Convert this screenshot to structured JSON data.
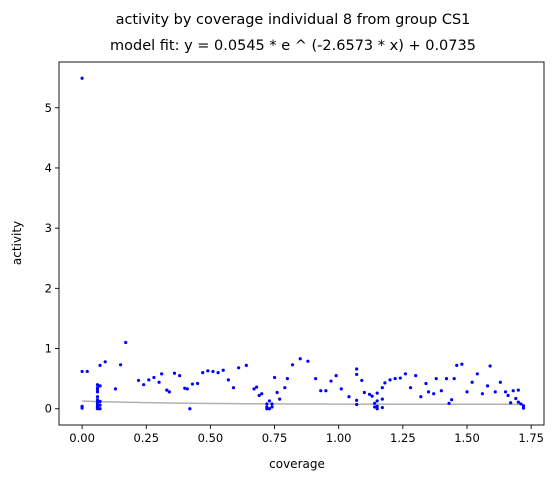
{
  "chart_data": {
    "type": "scatter",
    "title": "activity by coverage individual 8 from group CS1",
    "subtitle": "model fit: y = 0.0545 * e ^ (-2.6573 * x) + 0.0735",
    "xlabel": "coverage",
    "ylabel": "activity",
    "xlim": [
      -0.09,
      1.8
    ],
    "ylim": [
      -0.27,
      5.76
    ],
    "xticks": [
      0.0,
      0.25,
      0.5,
      0.75,
      1.0,
      1.25,
      1.5,
      1.75
    ],
    "xtick_labels": [
      "0.00",
      "0.25",
      "0.50",
      "0.75",
      "1.00",
      "1.25",
      "1.50",
      "1.75"
    ],
    "yticks": [
      0,
      1,
      2,
      3,
      4,
      5
    ],
    "ytick_labels": [
      "0",
      "1",
      "2",
      "3",
      "4",
      "5"
    ],
    "grid": false,
    "point_color": "#0000ff",
    "fit_color": "#b0b0b0",
    "fit": {
      "a": 0.0545,
      "b": -2.6573,
      "c": 0.0735
    },
    "points": [
      [
        0.0,
        5.49
      ],
      [
        0.0,
        0.62
      ],
      [
        0.0,
        0.04
      ],
      [
        0.0,
        0.01
      ],
      [
        0.02,
        0.62
      ],
      [
        0.06,
        0.0
      ],
      [
        0.06,
        0.01
      ],
      [
        0.06,
        0.03
      ],
      [
        0.06,
        0.05
      ],
      [
        0.06,
        0.08
      ],
      [
        0.06,
        0.11
      ],
      [
        0.06,
        0.15
      ],
      [
        0.06,
        0.2
      ],
      [
        0.06,
        0.28
      ],
      [
        0.06,
        0.32
      ],
      [
        0.06,
        0.35
      ],
      [
        0.06,
        0.4
      ],
      [
        0.06,
        0.02
      ],
      [
        0.07,
        0.0
      ],
      [
        0.07,
        0.06
      ],
      [
        0.07,
        0.12
      ],
      [
        0.07,
        0.38
      ],
      [
        0.07,
        0.72
      ],
      [
        0.09,
        0.78
      ],
      [
        0.13,
        0.33
      ],
      [
        0.15,
        0.73
      ],
      [
        0.17,
        1.1
      ],
      [
        0.22,
        0.47
      ],
      [
        0.24,
        0.4
      ],
      [
        0.26,
        0.48
      ],
      [
        0.28,
        0.52
      ],
      [
        0.3,
        0.44
      ],
      [
        0.31,
        0.58
      ],
      [
        0.33,
        0.31
      ],
      [
        0.34,
        0.28
      ],
      [
        0.36,
        0.59
      ],
      [
        0.38,
        0.55
      ],
      [
        0.4,
        0.34
      ],
      [
        0.41,
        0.33
      ],
      [
        0.42,
        0.0
      ],
      [
        0.43,
        0.41
      ],
      [
        0.45,
        0.42
      ],
      [
        0.47,
        0.6
      ],
      [
        0.49,
        0.63
      ],
      [
        0.51,
        0.62
      ],
      [
        0.53,
        0.6
      ],
      [
        0.55,
        0.64
      ],
      [
        0.57,
        0.48
      ],
      [
        0.59,
        0.35
      ],
      [
        0.61,
        0.68
      ],
      [
        0.64,
        0.72
      ],
      [
        0.67,
        0.33
      ],
      [
        0.68,
        0.36
      ],
      [
        0.69,
        0.22
      ],
      [
        0.7,
        0.25
      ],
      [
        0.72,
        0.0
      ],
      [
        0.72,
        0.03
      ],
      [
        0.72,
        0.08
      ],
      [
        0.73,
        0.13
      ],
      [
        0.73,
        0.0
      ],
      [
        0.74,
        0.08
      ],
      [
        0.74,
        0.03
      ],
      [
        0.75,
        0.52
      ],
      [
        0.76,
        0.27
      ],
      [
        0.77,
        0.16
      ],
      [
        0.79,
        0.35
      ],
      [
        0.8,
        0.5
      ],
      [
        0.82,
        0.73
      ],
      [
        0.85,
        0.83
      ],
      [
        0.88,
        0.79
      ],
      [
        0.91,
        0.5
      ],
      [
        0.93,
        0.3
      ],
      [
        0.95,
        0.3
      ],
      [
        0.97,
        0.46
      ],
      [
        0.99,
        0.55
      ],
      [
        1.01,
        0.33
      ],
      [
        1.04,
        0.2
      ],
      [
        1.07,
        0.66
      ],
      [
        1.07,
        0.57
      ],
      [
        1.07,
        0.14
      ],
      [
        1.07,
        0.07
      ],
      [
        1.09,
        0.47
      ],
      [
        1.1,
        0.27
      ],
      [
        1.12,
        0.24
      ],
      [
        1.13,
        0.21
      ],
      [
        1.14,
        0.09
      ],
      [
        1.14,
        0.03
      ],
      [
        1.15,
        0.0
      ],
      [
        1.15,
        0.04
      ],
      [
        1.15,
        0.13
      ],
      [
        1.15,
        0.26
      ],
      [
        1.17,
        0.16
      ],
      [
        1.17,
        0.02
      ],
      [
        1.17,
        0.35
      ],
      [
        1.18,
        0.43
      ],
      [
        1.2,
        0.48
      ],
      [
        1.22,
        0.5
      ],
      [
        1.24,
        0.51
      ],
      [
        1.26,
        0.58
      ],
      [
        1.28,
        0.35
      ],
      [
        1.3,
        0.55
      ],
      [
        1.32,
        0.2
      ],
      [
        1.34,
        0.42
      ],
      [
        1.35,
        0.28
      ],
      [
        1.37,
        0.25
      ],
      [
        1.38,
        0.5
      ],
      [
        1.4,
        0.3
      ],
      [
        1.42,
        0.5
      ],
      [
        1.43,
        0.09
      ],
      [
        1.44,
        0.15
      ],
      [
        1.45,
        0.5
      ],
      [
        1.46,
        0.72
      ],
      [
        1.48,
        0.74
      ],
      [
        1.5,
        0.28
      ],
      [
        1.52,
        0.44
      ],
      [
        1.54,
        0.58
      ],
      [
        1.56,
        0.25
      ],
      [
        1.58,
        0.38
      ],
      [
        1.59,
        0.71
      ],
      [
        1.61,
        0.28
      ],
      [
        1.63,
        0.44
      ],
      [
        1.65,
        0.28
      ],
      [
        1.66,
        0.22
      ],
      [
        1.67,
        0.1
      ],
      [
        1.68,
        0.3
      ],
      [
        1.69,
        0.17
      ],
      [
        1.7,
        0.11
      ],
      [
        1.7,
        0.31
      ],
      [
        1.71,
        0.08
      ],
      [
        1.72,
        0.05
      ],
      [
        1.72,
        0.01
      ]
    ]
  }
}
